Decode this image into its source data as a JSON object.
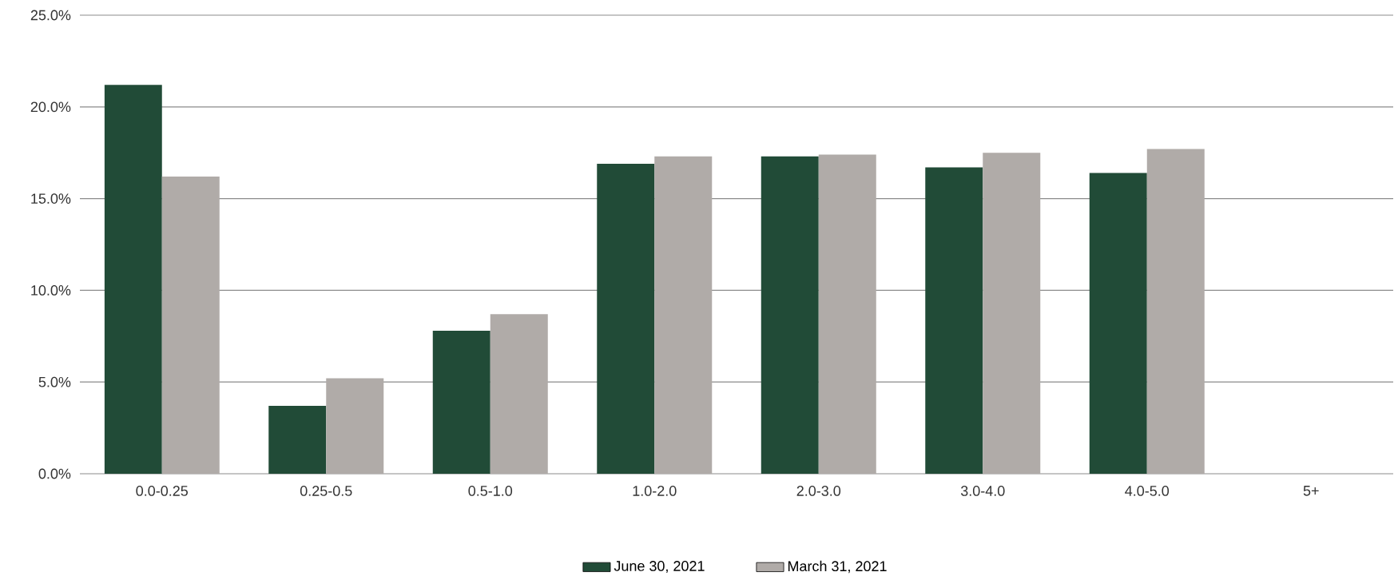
{
  "chart_data": {
    "type": "bar",
    "categories": [
      "0.0-0.25",
      "0.25-0.5",
      "0.5-1.0",
      "1.0-2.0",
      "2.0-3.0",
      "3.0-4.0",
      "4.0-5.0",
      "5+"
    ],
    "series": [
      {
        "name": "June 30, 2021",
        "color": "#214b37",
        "values": [
          21.2,
          3.7,
          7.8,
          16.9,
          17.3,
          16.7,
          16.4,
          null
        ]
      },
      {
        "name": "March 31, 2021",
        "color": "#b0aba8",
        "values": [
          16.2,
          5.2,
          8.7,
          17.3,
          17.4,
          17.5,
          17.7,
          null
        ]
      }
    ],
    "ylim": [
      0,
      25
    ],
    "yticks": [
      {
        "value": 0,
        "label": "0.0%"
      },
      {
        "value": 5,
        "label": "5.0%"
      },
      {
        "value": 10,
        "label": "10.0%"
      },
      {
        "value": 15,
        "label": "15.0%"
      },
      {
        "value": 20,
        "label": "20.0%"
      },
      {
        "value": 25,
        "label": "25.0%"
      }
    ],
    "grid": "y",
    "legend": "bottom"
  }
}
